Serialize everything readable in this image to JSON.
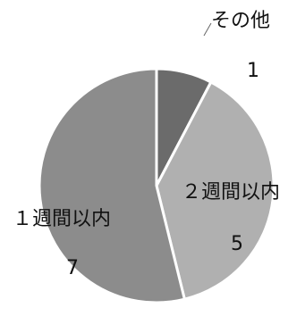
{
  "chart_data": {
    "type": "pie",
    "title": "",
    "categories": [
      "その他",
      "２週間以内",
      "１週間以内"
    ],
    "values": [
      1,
      5,
      7
    ],
    "colors": [
      "#6b6b6b",
      "#b0b0b0",
      "#8c8c8c"
    ],
    "start_angle_deg": 0,
    "direction": "clockwise",
    "legend": "none",
    "data_labels": [
      "1",
      "5",
      "7"
    ]
  }
}
